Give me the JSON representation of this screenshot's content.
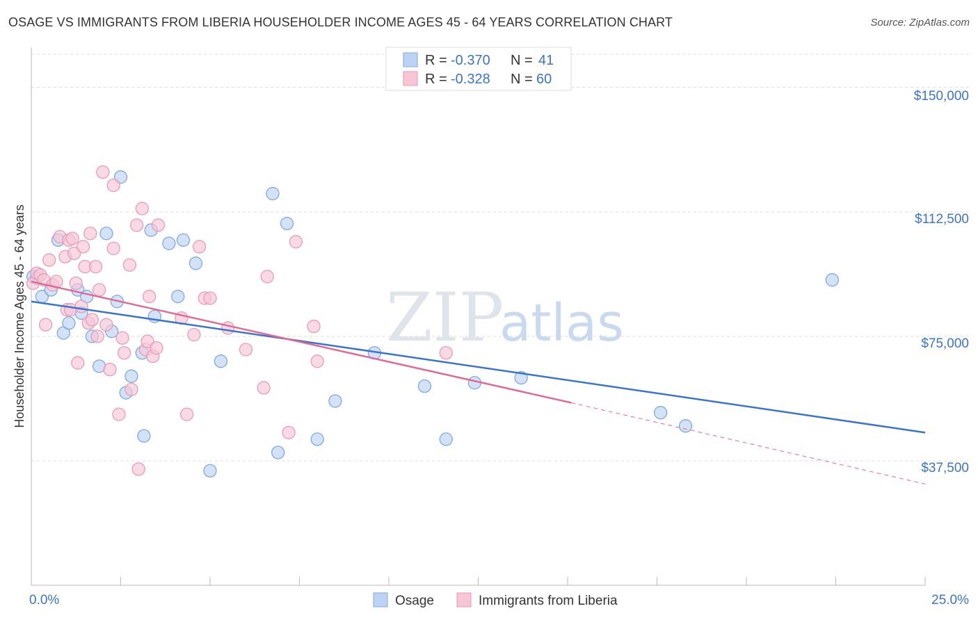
{
  "header": {
    "title": "OSAGE VS IMMIGRANTS FROM LIBERIA HOUSEHOLDER INCOME AGES 45 - 64 YEARS CORRELATION CHART",
    "source": "Source: ZipAtlas.com"
  },
  "watermark": {
    "zip": "ZIP",
    "atlas": "atlas"
  },
  "legend": {
    "r_label": "R =",
    "n_label": "N =",
    "rows": [
      {
        "series": "Osage",
        "r": "-0.370",
        "n": "41",
        "color": "#7fa8e0",
        "fill": "#bcd3f3"
      },
      {
        "series": "Immigrants from Liberia",
        "r": "-0.328",
        "n": "60",
        "color": "#e89bb5",
        "fill": "#f6c6d5"
      }
    ]
  },
  "chart_data": {
    "type": "scatter",
    "title": "OSAGE VS IMMIGRANTS FROM LIBERIA HOUSEHOLDER INCOME AGES 45 - 64 YEARS CORRELATION CHART",
    "xlabel": "",
    "ylabel": "Householder Income Ages 45 - 64 years",
    "xlim": [
      0,
      25
    ],
    "ylim": [
      0,
      160000
    ],
    "x_tick_labels": [
      "0.0%",
      "25.0%"
    ],
    "y_ticks": [
      37500,
      75000,
      112500,
      150000
    ],
    "y_tick_labels": [
      "$37,500",
      "$75,000",
      "$112,500",
      "$150,000"
    ],
    "grid": true,
    "legend_position": "top-center",
    "series": [
      {
        "name": "Osage",
        "color": "#3a74cf",
        "point_fill": "#bcd3f3",
        "point_stroke": "#7fa8e0",
        "trend": {
          "x": [
            0,
            25
          ],
          "y": [
            85500,
            46000
          ]
        },
        "points": [
          [
            0.05,
            93000
          ],
          [
            0.3,
            87000
          ],
          [
            0.55,
            89000
          ],
          [
            0.75,
            104000
          ],
          [
            0.9,
            76000
          ],
          [
            1.05,
            79000
          ],
          [
            1.3,
            89000
          ],
          [
            1.4,
            82000
          ],
          [
            1.55,
            87000
          ],
          [
            1.7,
            75000
          ],
          [
            1.9,
            66000
          ],
          [
            2.1,
            106000
          ],
          [
            2.25,
            76500
          ],
          [
            2.4,
            85500
          ],
          [
            2.5,
            123000
          ],
          [
            2.65,
            58000
          ],
          [
            2.8,
            63000
          ],
          [
            3.1,
            70000
          ],
          [
            3.15,
            45000
          ],
          [
            3.35,
            107000
          ],
          [
            3.45,
            81000
          ],
          [
            3.85,
            103000
          ],
          [
            4.1,
            87000
          ],
          [
            4.25,
            104000
          ],
          [
            4.6,
            97000
          ],
          [
            5.0,
            34500
          ],
          [
            5.3,
            67500
          ],
          [
            6.75,
            118000
          ],
          [
            6.9,
            40000
          ],
          [
            7.15,
            109000
          ],
          [
            8.0,
            44000
          ],
          [
            8.5,
            55500
          ],
          [
            9.6,
            70000
          ],
          [
            11.0,
            60000
          ],
          [
            11.6,
            44000
          ],
          [
            12.4,
            61000
          ],
          [
            13.7,
            62500
          ],
          [
            17.6,
            52000
          ],
          [
            18.3,
            48000
          ],
          [
            22.4,
            92000
          ],
          [
            0.15,
            92500
          ]
        ]
      },
      {
        "name": "Immigrants from Liberia",
        "color": "#e06a96",
        "point_fill": "#f6c6d5",
        "point_stroke": "#e89bb5",
        "trend": {
          "x": [
            0,
            15.1
          ],
          "y": [
            91500,
            55000
          ]
        },
        "trend_dashed": {
          "x": [
            15.1,
            25
          ],
          "y": [
            55000,
            30500
          ]
        },
        "points": [
          [
            0.05,
            91000
          ],
          [
            0.15,
            94000
          ],
          [
            0.25,
            93500
          ],
          [
            0.35,
            92000
          ],
          [
            0.4,
            78500
          ],
          [
            0.5,
            98000
          ],
          [
            0.6,
            90500
          ],
          [
            0.7,
            91500
          ],
          [
            0.8,
            105000
          ],
          [
            0.95,
            99000
          ],
          [
            1.0,
            83000
          ],
          [
            1.05,
            104000
          ],
          [
            1.1,
            83000
          ],
          [
            1.15,
            104500
          ],
          [
            1.2,
            100000
          ],
          [
            1.25,
            91000
          ],
          [
            1.3,
            67000
          ],
          [
            1.4,
            84000
          ],
          [
            1.45,
            102000
          ],
          [
            1.5,
            96000
          ],
          [
            1.6,
            79000
          ],
          [
            1.65,
            106000
          ],
          [
            1.7,
            80000
          ],
          [
            1.8,
            96000
          ],
          [
            1.85,
            75000
          ],
          [
            1.9,
            89000
          ],
          [
            2.0,
            124500
          ],
          [
            2.1,
            78500
          ],
          [
            2.2,
            65000
          ],
          [
            2.3,
            101500
          ],
          [
            2.3,
            120500
          ],
          [
            2.45,
            51500
          ],
          [
            2.55,
            74500
          ],
          [
            2.6,
            70000
          ],
          [
            2.75,
            96500
          ],
          [
            2.8,
            59000
          ],
          [
            2.95,
            108500
          ],
          [
            3.0,
            35000
          ],
          [
            3.1,
            113500
          ],
          [
            3.2,
            71000
          ],
          [
            3.25,
            73500
          ],
          [
            3.3,
            87000
          ],
          [
            3.4,
            69000
          ],
          [
            3.5,
            71500
          ],
          [
            3.55,
            108500
          ],
          [
            4.2,
            80500
          ],
          [
            4.35,
            51500
          ],
          [
            4.55,
            75500
          ],
          [
            4.7,
            102000
          ],
          [
            4.85,
            86500
          ],
          [
            5.0,
            86500
          ],
          [
            5.5,
            77500
          ],
          [
            6.0,
            71000
          ],
          [
            6.5,
            59500
          ],
          [
            6.6,
            93000
          ],
          [
            7.2,
            46000
          ],
          [
            7.4,
            103500
          ],
          [
            7.9,
            78000
          ],
          [
            8.0,
            67500
          ],
          [
            11.6,
            70000
          ]
        ]
      }
    ]
  },
  "bottom_legend": [
    {
      "label": "Osage"
    },
    {
      "label": "Immigrants from Liberia"
    }
  ]
}
